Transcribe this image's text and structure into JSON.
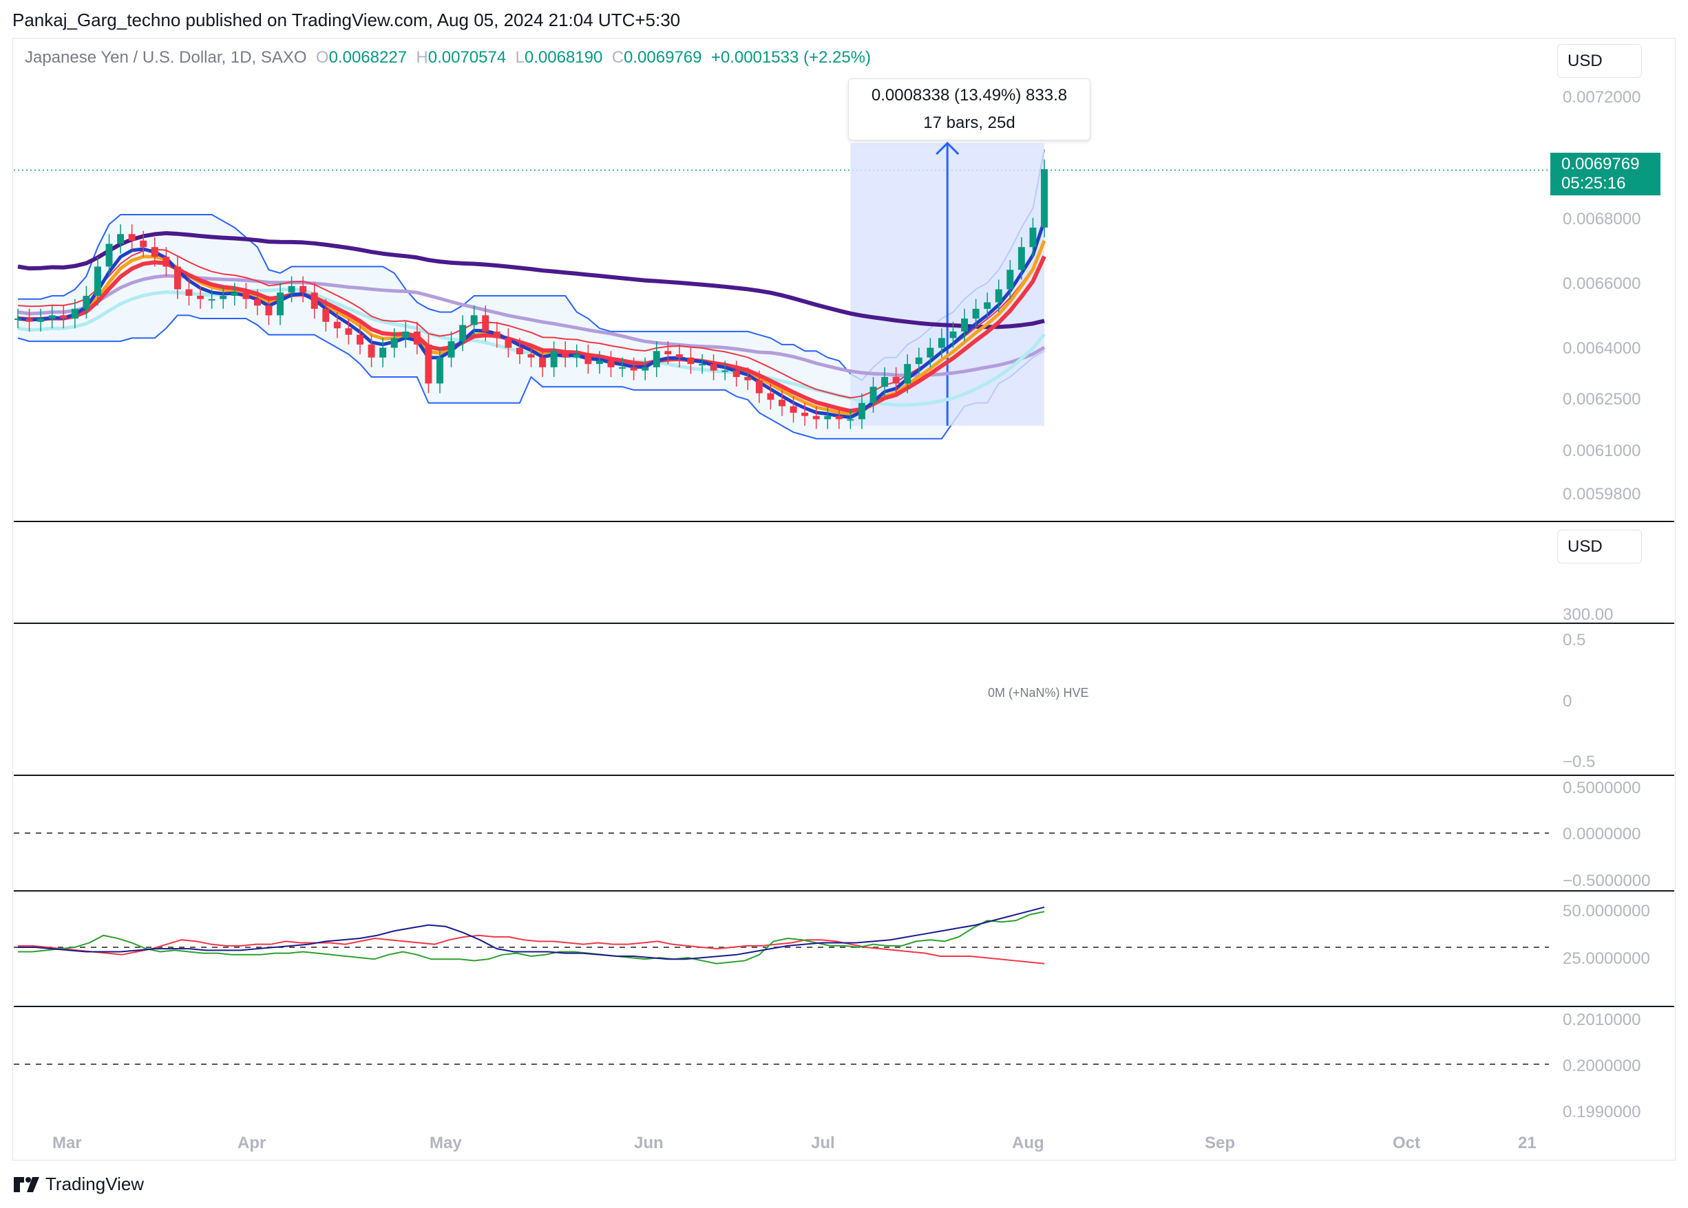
{
  "header": {
    "publisher": "Pankaj_Garg_techno published on TradingView.com, Aug 05, 2024 21:04 UTC+5:30"
  },
  "symbol": {
    "title": "Japanese Yen / U.S. Dollar, 1D, SAXO",
    "open_label": "O",
    "open": "0.0068227",
    "high_label": "H",
    "high": "0.0070574",
    "low_label": "L",
    "low": "0.0068190",
    "close_label": "C",
    "close": "0.0069769",
    "change": "+0.0001533 (+2.25%)"
  },
  "currency_selector": {
    "label": "USD"
  },
  "currency_selector_2": {
    "label": "USD"
  },
  "last_price": {
    "value": "0.0069769",
    "countdown": "05:25:16"
  },
  "measure_tool": {
    "line1": "0.0008338 (13.49%) 833.8",
    "line2": "17 bars, 25d"
  },
  "price_axis": [
    "0.0072000",
    "0.0068000",
    "0.0066000",
    "0.0064000",
    "0.0062500",
    "0.0061000",
    "0.0059800"
  ],
  "volume_axis": [
    "300.00"
  ],
  "hve_axis": [
    "0.5",
    "0",
    "−0.5"
  ],
  "hve_label": "0M (+NaN%) HVE",
  "osc_axis": [
    "0.5000000",
    "0.0000000",
    "−0.5000000"
  ],
  "dmi_axis": [
    "50.0000000",
    "25.0000000"
  ],
  "last_axis": [
    "0.2010000",
    "0.2000000",
    "0.1990000"
  ],
  "time_axis": [
    "Mar",
    "Apr",
    "May",
    "Jun",
    "Jul",
    "Aug",
    "Sep",
    "Oct",
    "21"
  ],
  "footer": {
    "brand": "TradingView"
  },
  "colors": {
    "up": "#089981",
    "down": "#f23645",
    "ema_blue": "#1e3fc8",
    "ema_red": "#f23645",
    "ema_orange": "#f7a21b",
    "sma_dark": "#4a1a8c",
    "sma_lilac": "#b39ddb",
    "sma_cyan": "#b2ebf2",
    "keltner": "#2962ff",
    "measure_fill": "#dbe4ff"
  },
  "chart_data": {
    "type": "candlestick",
    "symbol": "Japanese Yen / U.S. Dollar",
    "interval": "1D",
    "x_range": [
      "2024-02-23",
      "2024-08-05"
    ],
    "ylim": [
      0.00596,
      0.00724
    ],
    "y_ticks": [
      0.0072,
      0.0068,
      0.0066,
      0.0064,
      0.00625,
      0.0061,
      0.00598
    ],
    "close": [
      0.00652,
      0.00651,
      0.00652,
      0.00653,
      0.00652,
      0.00655,
      0.00659,
      0.00668,
      0.00675,
      0.00678,
      0.00676,
      0.00674,
      0.00671,
      0.00668,
      0.00661,
      0.00659,
      0.00658,
      0.00658,
      0.00659,
      0.0066,
      0.00658,
      0.00656,
      0.00653,
      0.0066,
      0.00662,
      0.0066,
      0.00655,
      0.00651,
      0.00649,
      0.00647,
      0.00644,
      0.0064,
      0.00643,
      0.00646,
      0.00648,
      0.00644,
      0.00632,
      0.0064,
      0.00645,
      0.0065,
      0.00653,
      0.00648,
      0.00646,
      0.00643,
      0.00641,
      0.0064,
      0.00637,
      0.00642,
      0.0064,
      0.00641,
      0.00638,
      0.00639,
      0.00637,
      0.00637,
      0.00636,
      0.00637,
      0.00642,
      0.00641,
      0.0064,
      0.00638,
      0.00638,
      0.00636,
      0.00636,
      0.00634,
      0.00633,
      0.00629,
      0.00627,
      0.00625,
      0.00623,
      0.00622,
      0.00621,
      0.00622,
      0.00621,
      0.00621,
      0.00626,
      0.00631,
      0.00634,
      0.00632,
      0.00638,
      0.0064,
      0.00643,
      0.00646,
      0.00648,
      0.00652,
      0.00655,
      0.00657,
      0.00661,
      0.00667,
      0.00674,
      0.0068,
      0.00698
    ],
    "volume_axis": [
      300.0
    ],
    "indicators": [
      "EMA",
      "EMA",
      "EMA",
      "SMA 50",
      "SMA 100",
      "SMA 200",
      "Keltner Channel",
      "HVE",
      "DMI"
    ],
    "measure": {
      "change": 0.0008338,
      "percent": 13.49,
      "bars": 17,
      "days": 25,
      "from": 0.00619,
      "to": 0.00706
    },
    "dmi": {
      "plus": [
        22,
        22,
        23,
        24,
        25,
        28,
        33,
        31,
        28,
        24,
        22,
        23,
        22,
        21,
        21,
        20,
        20,
        20,
        21,
        21,
        22,
        21,
        20,
        19,
        18,
        17,
        20,
        22,
        20,
        17,
        17,
        17,
        16,
        17,
        20,
        21,
        19,
        20,
        22,
        22,
        21,
        20,
        19,
        18,
        17,
        18,
        17,
        18,
        16,
        14,
        15,
        16,
        20,
        29,
        31,
        30,
        28,
        26,
        26,
        25,
        27,
        26,
        26,
        29,
        30,
        29,
        32,
        38,
        43,
        42,
        43,
        47,
        49
      ],
      "minus": [
        26,
        26,
        25,
        24,
        23,
        22,
        21,
        20,
        22,
        24,
        27,
        30,
        29,
        27,
        26,
        26,
        27,
        27,
        29,
        28,
        28,
        28,
        27,
        29,
        31,
        30,
        29,
        28,
        27,
        30,
        32,
        33,
        32,
        32,
        30,
        29,
        29,
        28,
        27,
        28,
        27,
        27,
        28,
        29,
        27,
        26,
        25,
        24,
        25,
        26,
        26,
        27,
        28,
        30,
        30,
        29,
        27,
        25,
        24,
        23,
        22,
        21,
        19,
        19,
        19,
        18,
        17,
        16,
        15,
        14
      ],
      "adx": [
        25,
        25,
        24,
        23,
        22,
        22,
        22,
        23,
        24,
        24,
        24,
        23,
        23,
        23,
        24,
        25,
        26,
        27,
        29,
        30,
        31,
        33,
        36,
        38,
        40,
        39,
        35,
        30,
        24,
        22,
        22,
        22,
        21,
        21,
        20,
        19,
        19,
        18,
        17,
        17,
        18,
        19,
        20,
        22,
        24,
        26,
        27,
        28,
        28,
        28,
        29,
        30,
        32,
        34,
        36,
        38,
        40,
        43,
        46,
        49,
        52
      ],
      "ylim": [
        8,
        60
      ]
    }
  }
}
